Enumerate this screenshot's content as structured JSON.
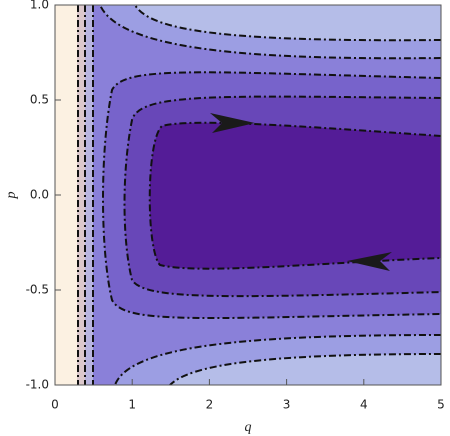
{
  "chart_data": {
    "type": "contour",
    "x_label": "q",
    "y_label": "p",
    "xlim": [
      0,
      5
    ],
    "ylim": [
      -1,
      1
    ],
    "xticks": [
      0,
      1,
      2,
      3,
      4,
      5
    ],
    "yticks": [
      {
        "value": -1,
        "label": "-1.0"
      },
      {
        "value": -0.5,
        "label": "-0.5"
      },
      {
        "value": 0,
        "label": "0.0"
      },
      {
        "value": 0.5,
        "label": "0.5"
      },
      {
        "value": 1,
        "label": "1.0"
      }
    ]
  }
}
